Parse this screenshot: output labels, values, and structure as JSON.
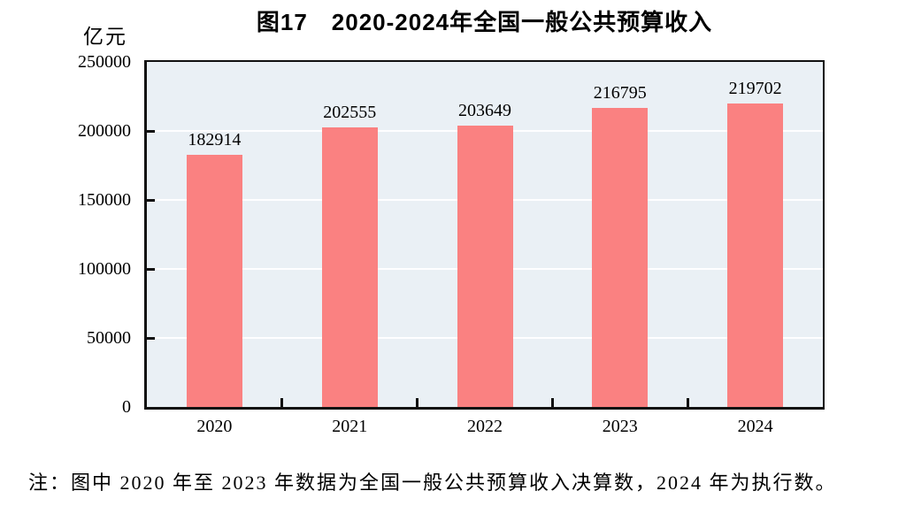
{
  "chart_data": {
    "type": "bar",
    "title": "图17　2020-2024年全国一般公共预算收入",
    "unit_label": "亿元",
    "categories": [
      "2020",
      "2021",
      "2022",
      "2023",
      "2024"
    ],
    "values": [
      182914,
      202555,
      203649,
      216795,
      219702
    ],
    "data_labels": [
      182914,
      202555,
      203649,
      216795,
      219702
    ],
    "yticks": [
      0,
      50000,
      100000,
      150000,
      200000,
      250000
    ],
    "ylim": [
      0,
      250000
    ],
    "xlabel": "",
    "ylabel": "亿元",
    "grid": true,
    "legend_position": "none",
    "bar_color": "#FA8181",
    "plot_background": "#EAF0F5",
    "grid_color": "#FFFFFF",
    "axis_color": "#111111"
  },
  "note": "注：图中 2020 年至 2023 年数据为全国一般公共预算收入决算数，2024 年为执行数。"
}
